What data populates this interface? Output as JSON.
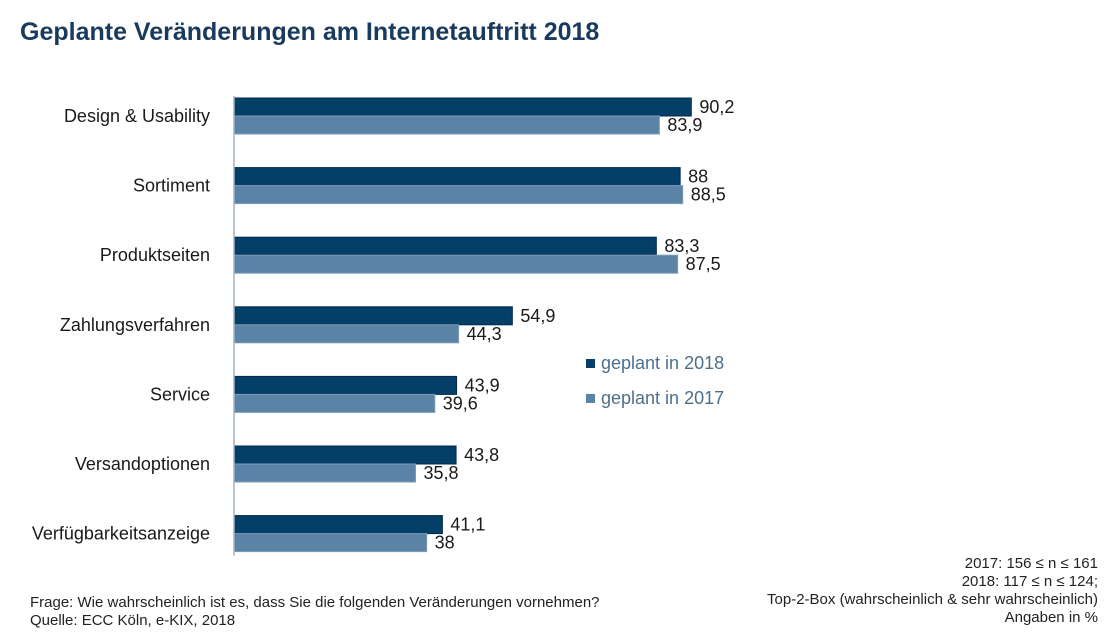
{
  "title": "Geplante Veränderungen am Internetauftritt 2018",
  "chart_data": {
    "type": "bar",
    "orientation": "horizontal",
    "categories": [
      "Design & Usability",
      "Sortiment",
      "Produktseiten",
      "Zahlungsverfahren",
      "Service",
      "Versandoptionen",
      "Verfügbarkeitsanzeige"
    ],
    "series": [
      {
        "name": "geplant in 2018",
        "color": "#043f68",
        "values": [
          90.2,
          88,
          83.3,
          54.9,
          43.9,
          43.8,
          41.1
        ],
        "labels": [
          "90,2",
          "88",
          "83,3",
          "54,9",
          "43,9",
          "43,8",
          "41,1"
        ]
      },
      {
        "name": "geplant in 2017",
        "color": "#5a83a5",
        "values": [
          83.9,
          88.5,
          87.5,
          44.3,
          39.6,
          35.8,
          38
        ],
        "labels": [
          "83,9",
          "88,5",
          "87,5",
          "44,3",
          "39,6",
          "35,8",
          "38"
        ]
      }
    ],
    "legend_position": "right",
    "grid": false,
    "xlim": [
      0,
      100
    ]
  },
  "notes_right": [
    "2017: 156 ≤ n ≤ 161",
    "2018: 117 ≤ n ≤ 124;",
    "Top-2-Box (wahrscheinlich & sehr wahrscheinlich)",
    "Angaben in %"
  ],
  "notes_left": [
    "Frage: Wie wahrscheinlich ist es, dass Sie die folgenden Veränderungen vornehmen?",
    "Quelle: ECC Köln, e-KIX, 2018"
  ]
}
